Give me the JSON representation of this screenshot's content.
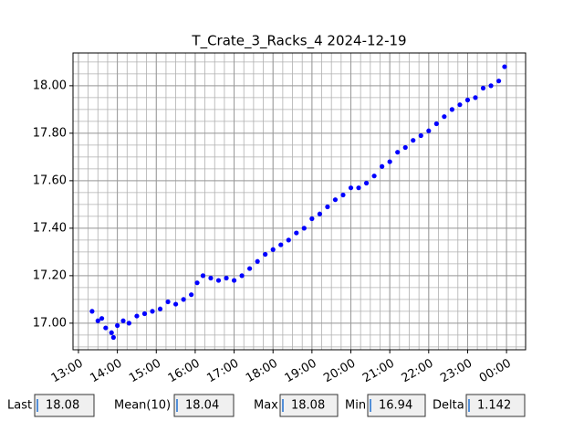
{
  "chart_data": {
    "type": "scatter",
    "title": "T_Crate_3_Racks_4 2024-12-19",
    "series": [
      {
        "color": "#0000ff",
        "x": [
          13.35,
          13.5,
          13.6,
          13.7,
          13.85,
          13.9,
          14.0,
          14.15,
          14.3,
          14.5,
          14.7,
          14.9,
          15.1,
          15.3,
          15.5,
          15.7,
          15.9,
          16.05,
          16.2,
          16.4,
          16.6,
          16.8,
          17.0,
          17.2,
          17.4,
          17.6,
          17.8,
          18.0,
          18.2,
          18.4,
          18.6,
          18.8,
          19.0,
          19.2,
          19.4,
          19.6,
          19.8,
          20.0,
          20.2,
          20.4,
          20.6,
          20.8,
          21.0,
          21.2,
          21.4,
          21.6,
          21.8,
          22.0,
          22.2,
          22.4,
          22.6,
          22.8,
          23.0,
          23.2,
          23.4,
          23.6,
          23.8,
          23.95
        ],
        "values": [
          17.05,
          17.01,
          17.02,
          16.98,
          16.96,
          16.94,
          16.99,
          17.01,
          17.0,
          17.03,
          17.04,
          17.05,
          17.06,
          17.09,
          17.08,
          17.1,
          17.12,
          17.17,
          17.2,
          17.19,
          17.18,
          17.19,
          17.18,
          17.2,
          17.23,
          17.26,
          17.29,
          17.31,
          17.33,
          17.35,
          17.38,
          17.4,
          17.44,
          17.46,
          17.49,
          17.52,
          17.54,
          17.57,
          17.57,
          17.59,
          17.62,
          17.66,
          17.68,
          17.72,
          17.74,
          17.77,
          17.79,
          17.81,
          17.84,
          17.87,
          17.9,
          17.92,
          17.94,
          17.95,
          17.99,
          18.0,
          18.02,
          18.08
        ]
      }
    ],
    "xlim": [
      12.86,
      24.49
    ],
    "ylim": [
      16.888,
      18.138
    ],
    "xticks": [
      {
        "value": 13,
        "label": "13:00"
      },
      {
        "value": 14,
        "label": "14:00"
      },
      {
        "value": 15,
        "label": "15:00"
      },
      {
        "value": 16,
        "label": "16:00"
      },
      {
        "value": 17,
        "label": "17:00"
      },
      {
        "value": 18,
        "label": "18:00"
      },
      {
        "value": 19,
        "label": "19:00"
      },
      {
        "value": 20,
        "label": "20:00"
      },
      {
        "value": 21,
        "label": "21:00"
      },
      {
        "value": 22,
        "label": "22:00"
      },
      {
        "value": 23,
        "label": "23:00"
      },
      {
        "value": 24,
        "label": "00:00"
      }
    ],
    "yticks": [
      {
        "value": 17,
        "label": "17.00"
      },
      {
        "value": 17.2,
        "label": "17.20"
      },
      {
        "value": 17.4,
        "label": "17.40"
      },
      {
        "value": 17.6,
        "label": "17.60"
      },
      {
        "value": 17.8,
        "label": "17.80"
      },
      {
        "value": 18,
        "label": "18.00"
      }
    ],
    "xminorticks": [
      13,
      13.25,
      13.5,
      13.75,
      14,
      14.25,
      14.5,
      14.75,
      15,
      15.25,
      15.5,
      15.75,
      16,
      16.25,
      16.5,
      16.75,
      17,
      17.25,
      17.5,
      17.75,
      18,
      18.25,
      18.5,
      18.75,
      19,
      19.25,
      19.5,
      19.75,
      20,
      20.25,
      20.5,
      20.75,
      21,
      21.25,
      21.5,
      21.75,
      22,
      22.25,
      22.5,
      22.75,
      23,
      23.25,
      23.5,
      23.75,
      24,
      24.25
    ],
    "yminorticks": [
      16.9,
      16.95,
      17,
      17.05,
      17.1,
      17.15,
      17.2,
      17.25,
      17.3,
      17.35,
      17.4,
      17.45,
      17.5,
      17.55,
      17.6,
      17.65,
      17.7,
      17.75,
      17.8,
      17.85,
      17.9,
      17.95,
      18,
      18.05,
      18.1
    ],
    "grid": true
  },
  "status_fields": [
    {
      "label": "Last",
      "value": "18.08"
    },
    {
      "label": "Mean(10)",
      "value": "18.04"
    },
    {
      "label": "Max",
      "value": "18.08"
    },
    {
      "label": "Min",
      "value": "16.94"
    },
    {
      "label": "Delta",
      "value": "1.142"
    }
  ]
}
